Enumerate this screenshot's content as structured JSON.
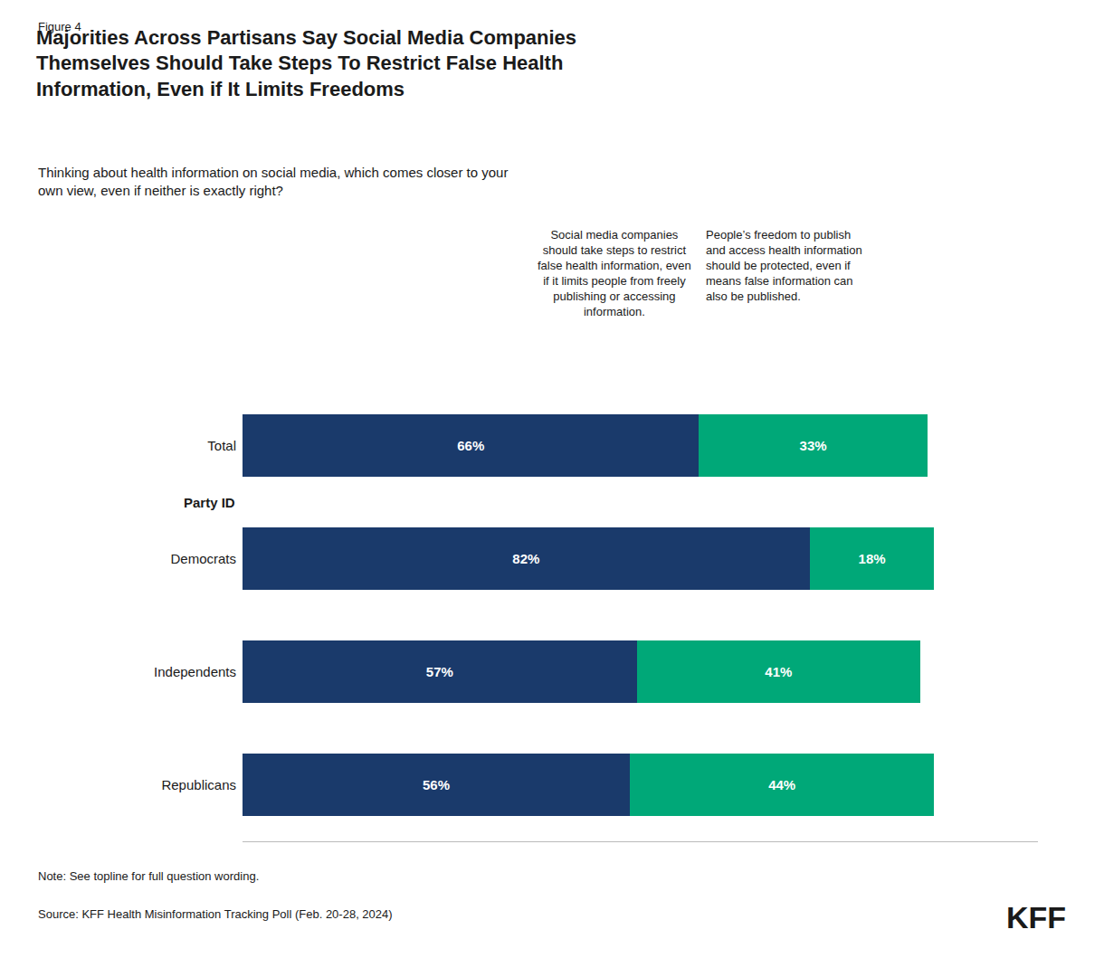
{
  "chart_data": {
    "type": "bar",
    "orientation": "horizontal",
    "stacked": true,
    "data_labels": true,
    "tick_labels": "y",
    "grid": false,
    "title": "Majorities Across Partisans Say Social Media Companies\nThemselves Should Take Steps To Restrict False Health\nInformation, Even if It Limits Freedoms",
    "subtitle": "Thinking about health information on social media, which comes closer to your\nown view, even if neither is exactly right?",
    "annotations": [
      "Figure 4",
      "Party ID",
      "Note: See topline for full question wording.",
      "Source: KFF Health Misinformation Tracking Poll (Feb. 20-28, 2024)",
      "KFF"
    ],
    "categories": [
      "Total",
      "Democrats",
      "Independents",
      "Republicans"
    ],
    "series": [
      {
        "name": "Social media companies\nshould take steps to restrict\nfalse health information, even\nif it limits people from freely\npublishing or accessing\ninformation.",
        "color": "#1a3a6b",
        "values": [
          66,
          82,
          57,
          56
        ],
        "value_labels": [
          "66%",
          "82%",
          "57%",
          "56%"
        ]
      },
      {
        "name": "People’s freedom to publish\nand access health information\nshould be protected, even if\nmeans false information can\nalso be published.",
        "color": "#00a878",
        "values": [
          33,
          18,
          41,
          44
        ],
        "value_labels": [
          "33%",
          "18%",
          "41%",
          "44%"
        ]
      }
    ],
    "xlim": [
      0,
      115
    ]
  }
}
